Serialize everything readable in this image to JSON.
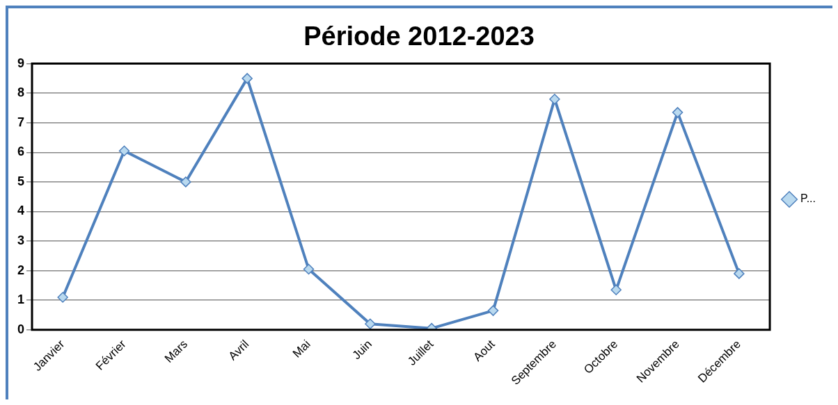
{
  "chart_data": {
    "type": "line",
    "title": "Période 2012-2023",
    "categories": [
      "Janvier",
      "Février",
      "Mars",
      "Avril",
      "Mai",
      "Juin",
      "Juillet",
      "Aout",
      "Septembre",
      "Octobre",
      "Novembre",
      "Décembre"
    ],
    "series": [
      {
        "name": "P...",
        "color": "#4f81bd",
        "values": [
          1.1,
          6.05,
          5.0,
          8.5,
          2.05,
          0.2,
          0.05,
          0.65,
          7.8,
          1.35,
          7.35,
          1.9
        ]
      }
    ],
    "ylim": [
      0,
      9
    ],
    "yticks": [
      0,
      1,
      2,
      3,
      4,
      5,
      6,
      7,
      8,
      9
    ],
    "grid": "y",
    "legend": "right",
    "marker": "diamond",
    "line_style": "solid"
  }
}
